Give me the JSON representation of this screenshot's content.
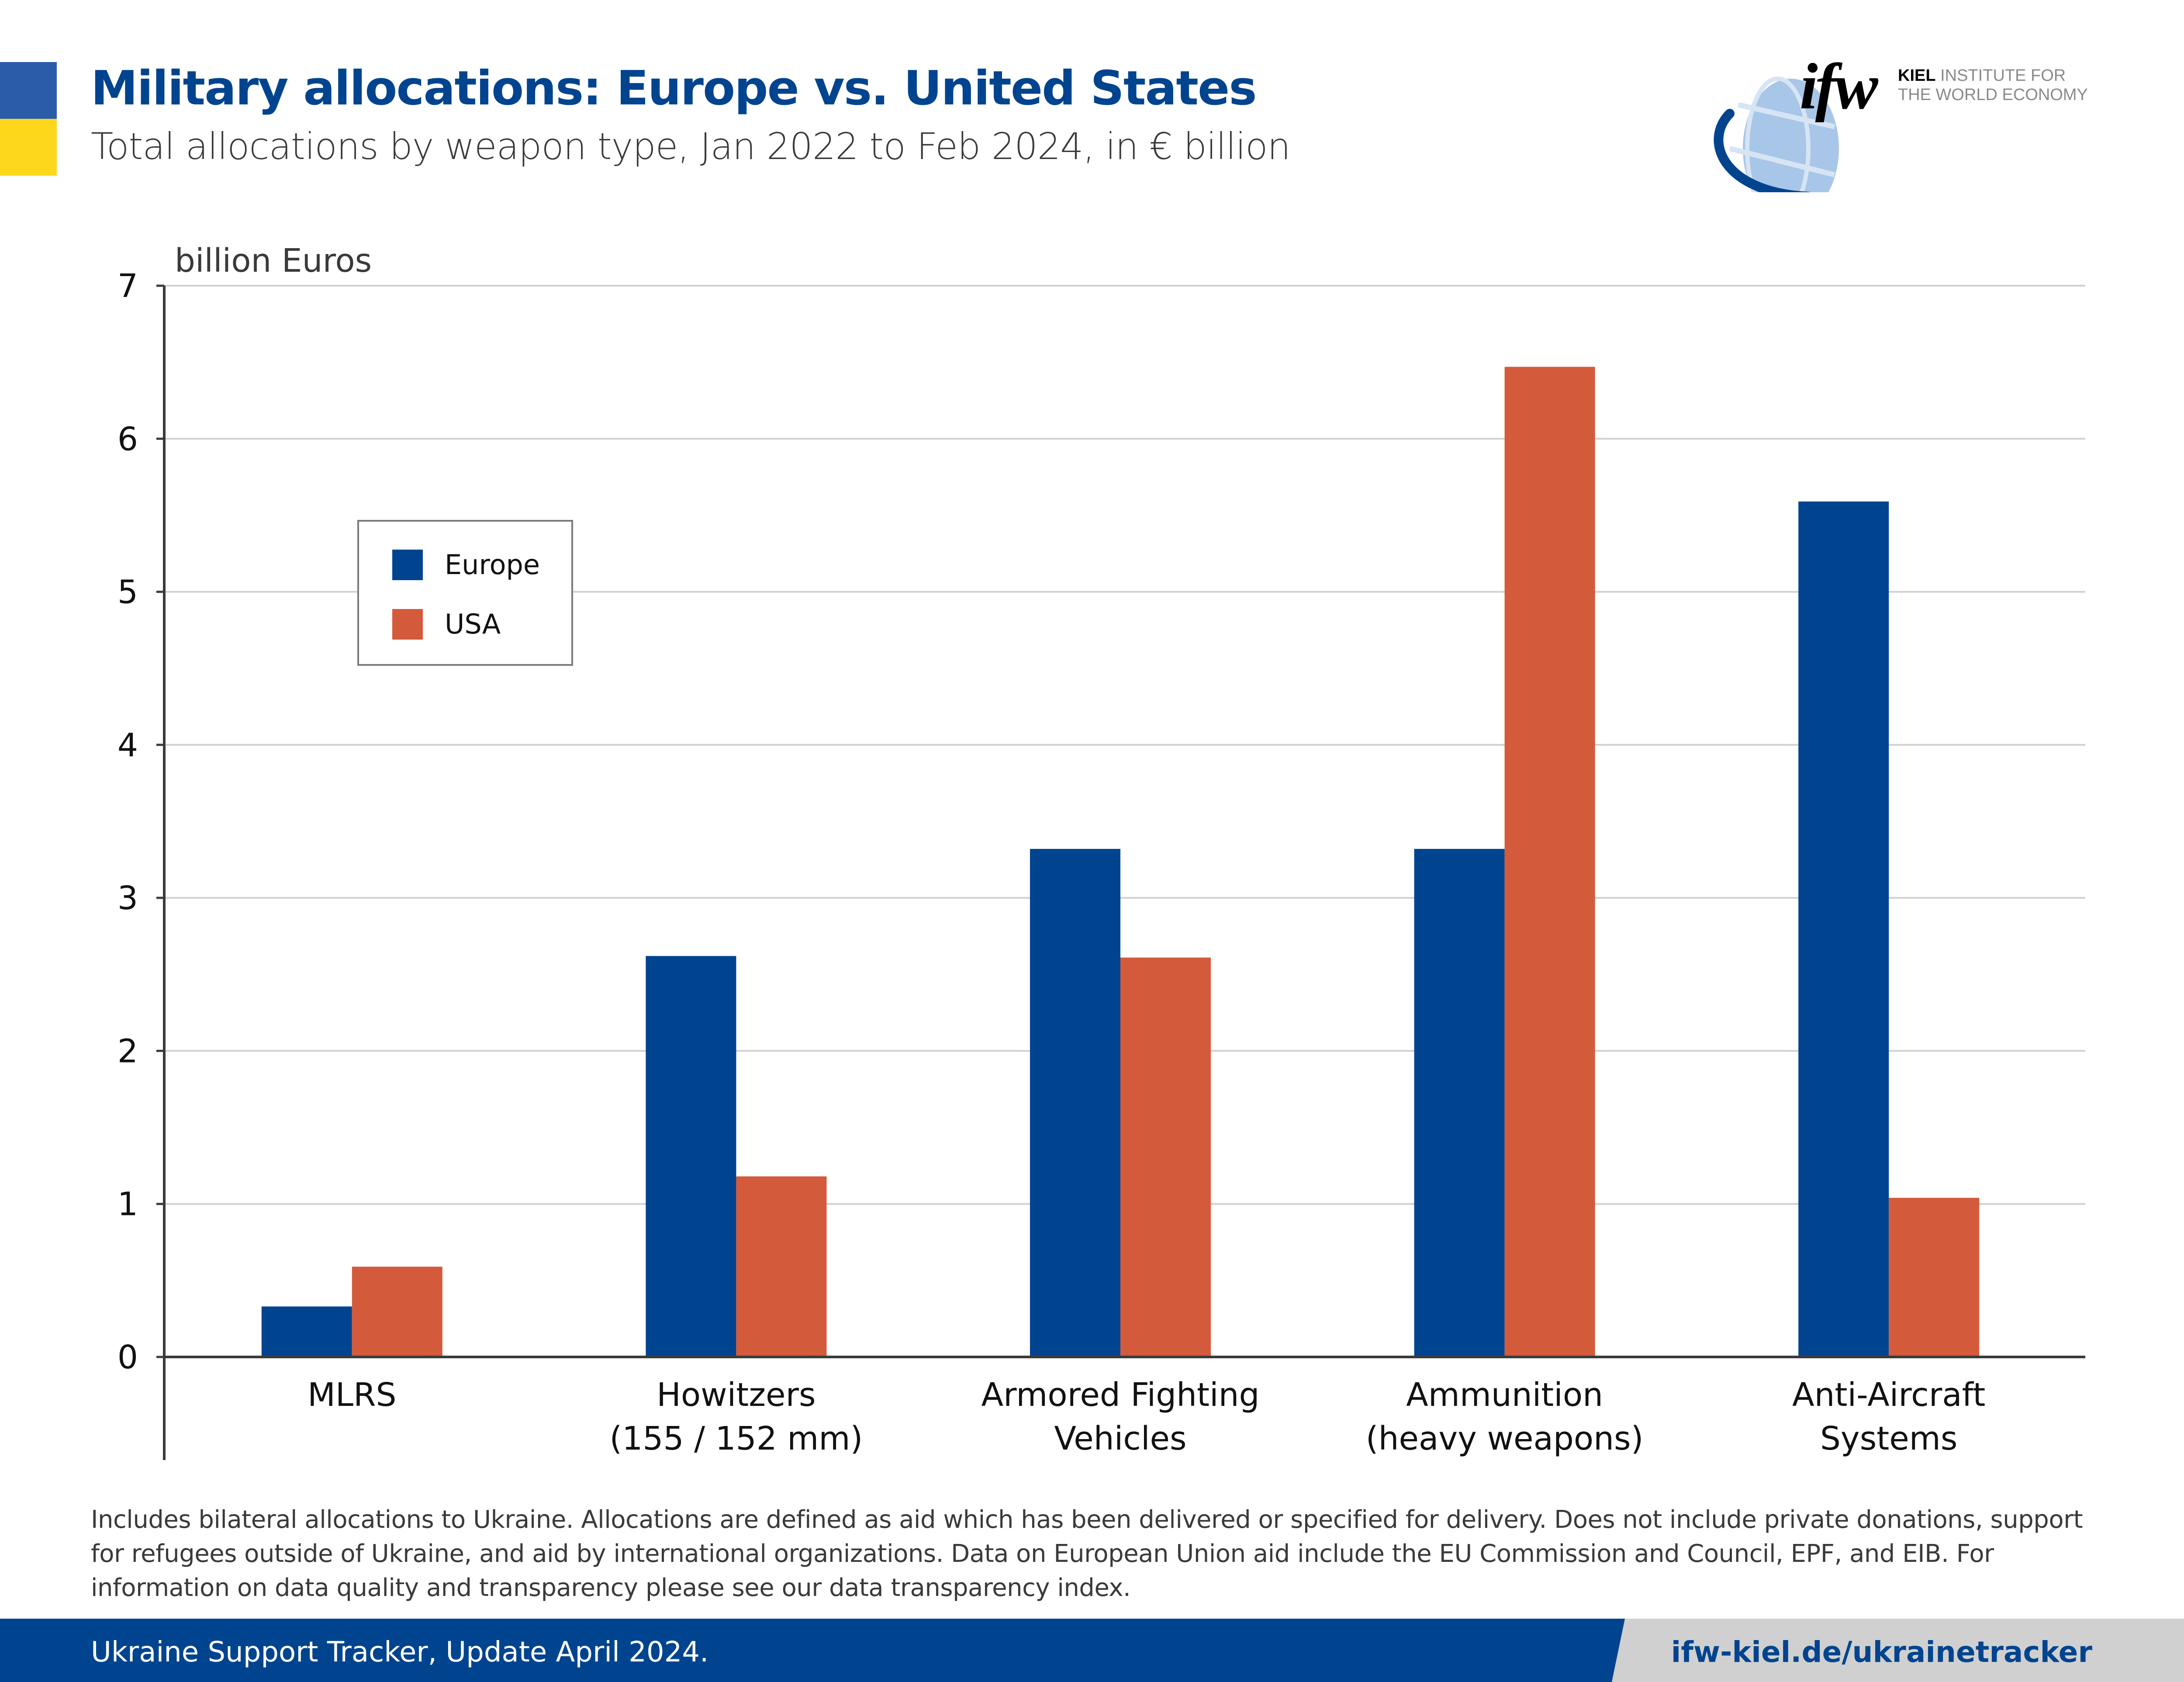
{
  "header": {
    "title": "Military allocations: Europe vs. United States",
    "subtitle": "Total allocations by weapon type, Jan 2022 to Feb 2024, in € billion"
  },
  "logo": {
    "mark": "ifw",
    "line1_bold": "KIEL",
    "line1_rest": " INSTITUTE FOR",
    "line2": "THE WORLD ECONOMY",
    "icon": "globe-icon"
  },
  "colors": {
    "europe": "#00448f",
    "usa": "#d45a3c",
    "flag_blue": "#2a5caa",
    "flag_yellow": "#fdd71c",
    "gridline": "#d0d0d0",
    "axis": "#3a3a3a"
  },
  "chart_data": {
    "type": "bar",
    "title": "Military allocations: Europe vs. United States",
    "subtitle": "Total allocations by weapon type, Jan 2022 to Feb 2024, in € billion",
    "xlabel": "",
    "ylabel": "billion Euros",
    "ylim": [
      0,
      7
    ],
    "yticks": [
      0,
      1,
      2,
      3,
      4,
      5,
      6,
      7
    ],
    "grid": true,
    "legend_position": "upper-left",
    "categories": [
      [
        "MLRS"
      ],
      [
        "Howitzers",
        "(155 / 152 mm)"
      ],
      [
        "Armored Fighting",
        "Vehicles"
      ],
      [
        "Ammunition",
        "(heavy weapons)"
      ],
      [
        "Anti-Aircraft",
        "Systems"
      ]
    ],
    "series": [
      {
        "name": "Europe",
        "color": "#00448f",
        "values": [
          0.33,
          2.62,
          3.32,
          3.32,
          5.59
        ]
      },
      {
        "name": "USA",
        "color": "#d45a3c",
        "values": [
          0.59,
          1.18,
          2.61,
          6.47,
          1.04
        ]
      }
    ]
  },
  "footnote": "Includes bilateral allocations to Ukraine. Allocations are defined as aid which has been delivered or specified for delivery. Does not include private donations, support for refugees outside of Ukraine, and aid by international organizations. Data on European Union aid include the EU Commission and Council, EPF, and EIB. For information on data quality and transparency please see our data transparency index.",
  "footer": {
    "left": "Ukraine Support Tracker, Update April 2024.",
    "right": "ifw-kiel.de/ukrainetracker"
  }
}
